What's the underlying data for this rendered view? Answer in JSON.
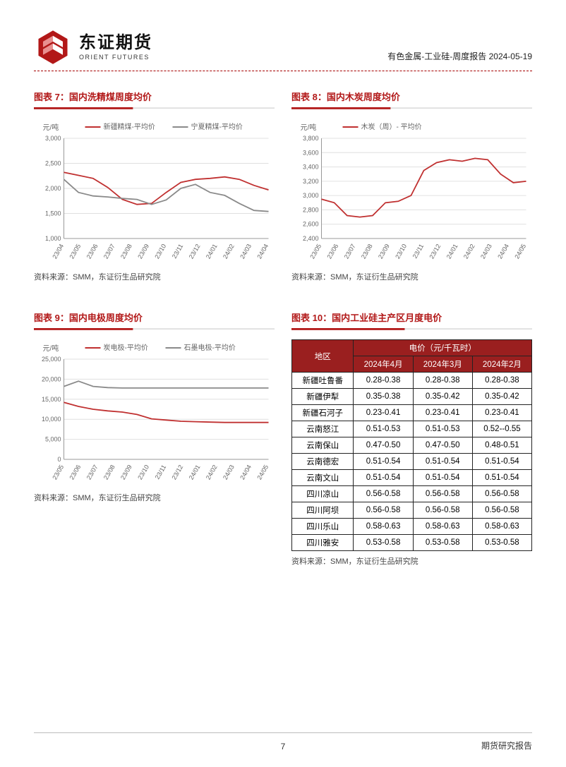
{
  "header": {
    "logo_cn": "东证期货",
    "logo_en": "ORIENT FUTURES",
    "breadcrumb": "有色金属-工业硅-周度报告 2024-05-19"
  },
  "palette": {
    "brand_red": "#b21818",
    "dark_red": "#9a1f1f",
    "line_red": "#c03030",
    "line_grey": "#8a8a8a",
    "grid": "#e0e0e0",
    "text": "#666666"
  },
  "charts": {
    "c7": {
      "title": "图表 7：国内洗精煤周度均价",
      "type": "line",
      "y_label": "元/吨",
      "ylim": [
        1000,
        3000
      ],
      "ytick_step": 500,
      "x_labels": [
        "23/04",
        "23/05",
        "23/06",
        "23/07",
        "23/08",
        "23/09",
        "23/10",
        "23/11",
        "23/12",
        "24/01",
        "24/02",
        "24/03",
        "24/04"
      ],
      "series": [
        {
          "name": "新疆精煤-平均价",
          "color": "#c03030",
          "values": [
            2320,
            2260,
            2200,
            2020,
            1780,
            1680,
            1700,
            1920,
            2120,
            2180,
            2200,
            2230,
            2180,
            2060,
            1970
          ]
        },
        {
          "name": "宁夏精煤-平均价",
          "color": "#8a8a8a",
          "values": [
            2180,
            1920,
            1850,
            1830,
            1800,
            1780,
            1680,
            1770,
            2000,
            2080,
            1920,
            1860,
            1700,
            1560,
            1540
          ]
        }
      ],
      "source": "资料来源：SMM，东证衍生品研究院"
    },
    "c8": {
      "title": "图表 8：国内木炭周度均价",
      "type": "line",
      "y_label": "元/吨",
      "ylim": [
        2400,
        3800
      ],
      "ytick_step": 200,
      "x_labels": [
        "23/05",
        "23/06",
        "23/07",
        "23/08",
        "23/09",
        "23/10",
        "23/11",
        "23/12",
        "24/01",
        "24/02",
        "24/03",
        "24/04",
        "24/05"
      ],
      "series": [
        {
          "name": "木炭（周）- 平均价",
          "color": "#c03030",
          "values": [
            2950,
            2900,
            2720,
            2700,
            2720,
            2900,
            2920,
            3000,
            3350,
            3460,
            3500,
            3480,
            3520,
            3500,
            3300,
            3180,
            3200
          ]
        }
      ],
      "source": "资料来源：SMM，东证衍生品研究院"
    },
    "c9": {
      "title": "图表 9：国内电极周度均价",
      "type": "line",
      "y_label": "元/吨",
      "ylim": [
        0,
        25000
      ],
      "ytick_step": 5000,
      "x_labels": [
        "23/05",
        "23/06",
        "23/07",
        "23/08",
        "23/09",
        "23/10",
        "23/11",
        "23/12",
        "24/01",
        "24/02",
        "24/03",
        "24/04",
        "24/05"
      ],
      "series": [
        {
          "name": "炭电极-平均价",
          "color": "#c03030",
          "values": [
            14200,
            13200,
            12500,
            12100,
            11800,
            11200,
            10100,
            9800,
            9500,
            9400,
            9300,
            9200,
            9200,
            9200,
            9200
          ]
        },
        {
          "name": "石墨电极-平均价",
          "color": "#8a8a8a",
          "values": [
            18200,
            19500,
            18200,
            17900,
            17800,
            17800,
            17800,
            17800,
            17800,
            17800,
            17800,
            17800,
            17800,
            17800,
            17800
          ]
        }
      ],
      "source": "资料来源：SMM，东证衍生品研究院"
    },
    "t10": {
      "title": "图表 10：国内工业硅主产区月度电价",
      "header_group": "电价（元/千瓦时）",
      "columns": [
        "地区",
        "2024年4月",
        "2024年3月",
        "2024年2月"
      ],
      "rows": [
        [
          "新疆吐鲁番",
          "0.28-0.38",
          "0.28-0.38",
          "0.28-0.38"
        ],
        [
          "新疆伊犁",
          "0.35-0.38",
          "0.35-0.42",
          "0.35-0.42"
        ],
        [
          "新疆石河子",
          "0.23-0.41",
          "0.23-0.41",
          "0.23-0.41"
        ],
        [
          "云南怒江",
          "0.51-0.53",
          "0.51-0.53",
          "0.52--0.55"
        ],
        [
          "云南保山",
          "0.47-0.50",
          "0.47-0.50",
          "0.48-0.51"
        ],
        [
          "云南德宏",
          "0.51-0.54",
          "0.51-0.54",
          "0.51-0.54"
        ],
        [
          "云南文山",
          "0.51-0.54",
          "0.51-0.54",
          "0.51-0.54"
        ],
        [
          "四川凉山",
          "0.56-0.58",
          "0.56-0.58",
          "0.56-0.58"
        ],
        [
          "四川阿坝",
          "0.56-0.58",
          "0.56-0.58",
          "0.56-0.58"
        ],
        [
          "四川乐山",
          "0.58-0.63",
          "0.58-0.63",
          "0.58-0.63"
        ],
        [
          "四川雅安",
          "0.53-0.58",
          "0.53-0.58",
          "0.53-0.58"
        ]
      ],
      "source": "资料来源：SMM，东证衍生品研究院"
    }
  },
  "footer": {
    "page_number": "7",
    "right_text": "期货研究报告"
  }
}
